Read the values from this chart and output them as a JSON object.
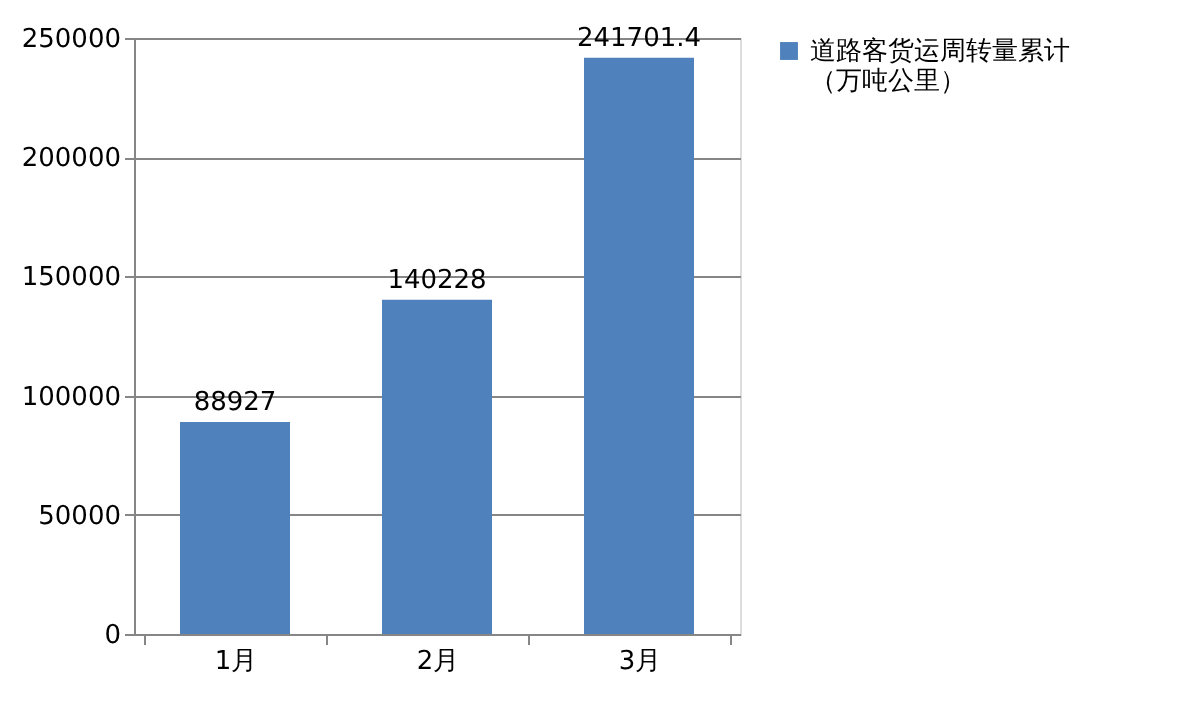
{
  "chart_data": {
    "type": "bar",
    "categories": [
      "1月",
      "2月",
      "3月"
    ],
    "series": [
      {
        "name": "道路客货运周转量累计（万吨公里）",
        "color": "#4f81bd",
        "values": [
          88927,
          140228,
          241701.4
        ]
      }
    ],
    "ylim": [
      0,
      250000
    ],
    "yticks": [
      0,
      50000,
      100000,
      150000,
      200000,
      250000
    ],
    "grid": "y",
    "legend": "right",
    "data_labels": true
  }
}
